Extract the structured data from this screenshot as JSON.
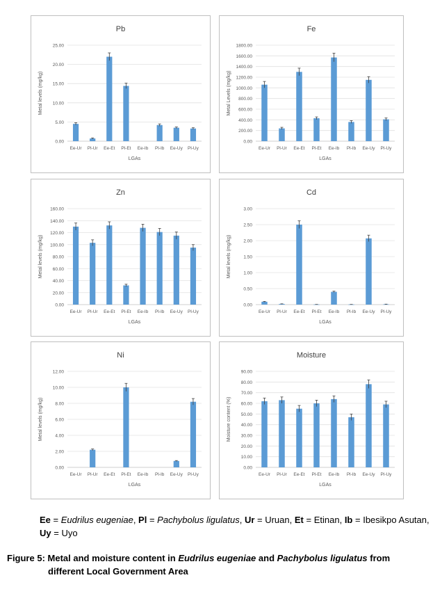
{
  "chart_data": [
    {
      "type": "bar",
      "title": "Pb",
      "xlabel": "LGAs",
      "ylabel": "Metal levels (mg/kg)",
      "categories": [
        "Ee-Ur",
        "Pl-Ur",
        "Ee-Et",
        "Pl-Et",
        "Ee-Ib",
        "Pl-Ib",
        "Ee-Uy",
        "Pl-Uy"
      ],
      "values": [
        4.5,
        0.7,
        22.0,
        14.4,
        0,
        4.2,
        3.5,
        3.3
      ],
      "errors": [
        0.3,
        0.15,
        1.0,
        0.7,
        0,
        0.3,
        0.2,
        0.2
      ],
      "ylim": [
        0,
        25
      ],
      "yticks": [
        "0.00",
        "5.00",
        "10.00",
        "15.00",
        "20.00",
        "25.00"
      ],
      "color": "#5b9bd5"
    },
    {
      "type": "bar",
      "title": "Fe",
      "xlabel": "LGAs",
      "ylabel": "Metal Levels (mg/kg)",
      "categories": [
        "Ee-Ur",
        "Pl-Ur",
        "Ee-Et",
        "Pl-Et",
        "Ee-Ib",
        "Pl-Ib",
        "Ee-Uy",
        "Pl-Uy"
      ],
      "values": [
        1060,
        240,
        1300,
        430,
        1570,
        360,
        1150,
        410
      ],
      "errors": [
        60,
        20,
        70,
        25,
        80,
        25,
        60,
        25
      ],
      "ylim": [
        0,
        1800
      ],
      "yticks": [
        "0.00",
        "200.00",
        "400.00",
        "600.00",
        "800.00",
        "1000.00",
        "1200.00",
        "1400.00",
        "1600.00",
        "1800.00"
      ],
      "color": "#5b9bd5"
    },
    {
      "type": "bar",
      "title": "Zn",
      "xlabel": "LGAs",
      "ylabel": "Metal levels (mg/kg)",
      "categories": [
        "Ee-Ur",
        "Pl-Ur",
        "Ee-Et",
        "Pl-Et",
        "Ee-Ib",
        "Pl-Ib",
        "Ee-Uy",
        "Pl-Uy"
      ],
      "values": [
        130,
        103,
        132,
        32,
        128,
        121,
        115,
        95
      ],
      "errors": [
        6,
        5,
        6,
        2,
        6,
        6,
        6,
        5
      ],
      "ylim": [
        0,
        160
      ],
      "yticks": [
        "0.00",
        "20.00",
        "40.00",
        "60.00",
        "80.00",
        "100.00",
        "120.00",
        "140.00",
        "160.00"
      ],
      "color": "#5b9bd5"
    },
    {
      "type": "bar",
      "title": "Cd",
      "xlabel": "LGAs",
      "ylabel": "Metal levels (mg/kg)",
      "categories": [
        "Ee-Ur",
        "Pl-Ur",
        "Ee-Et",
        "Pl-Et",
        "Ee-Ib",
        "Pl-Ib",
        "Ee-Uy",
        "Pl-Uy"
      ],
      "values": [
        0.09,
        0.02,
        2.5,
        0.005,
        0.4,
        0.005,
        2.07,
        0.01
      ],
      "errors": [
        0.01,
        0.005,
        0.12,
        0.002,
        0.02,
        0.002,
        0.1,
        0.005
      ],
      "ylim": [
        0,
        3
      ],
      "yticks": [
        "0.00",
        "0.50",
        "1.00",
        "1.50",
        "2.00",
        "2.50",
        "3.00"
      ],
      "color": "#5b9bd5"
    },
    {
      "type": "bar",
      "title": "Ni",
      "xlabel": "LGAs",
      "ylabel": "Metal levels (mg/kg)",
      "categories": [
        "Ee-Ur",
        "Pl-Ur",
        "Ee-Et",
        "Pl-Et",
        "Ee-Ib",
        "Pl-Ib",
        "Ee-Uy",
        "Pl-Uy"
      ],
      "values": [
        0,
        2.2,
        0,
        10.0,
        0,
        0,
        0.8,
        8.2
      ],
      "errors": [
        0,
        0.1,
        0,
        0.5,
        0,
        0,
        0.05,
        0.4
      ],
      "ylim": [
        0,
        12
      ],
      "yticks": [
        "0.00",
        "2.00",
        "4.00",
        "6.00",
        "8.00",
        "10.00",
        "12.00"
      ],
      "color": "#5b9bd5"
    },
    {
      "type": "bar",
      "title": "Moisture",
      "xlabel": "LGAs",
      "ylabel": "Moisture content (%)",
      "categories": [
        "Ee-Ur",
        "Pl-Ur",
        "Ee-Et",
        "Pl-Et",
        "Ee-Ib",
        "Pl-Ib",
        "Ee-Uy",
        "Pl-Uy"
      ],
      "values": [
        62,
        63,
        55,
        60,
        64,
        47,
        78,
        59
      ],
      "errors": [
        3,
        3,
        3,
        3,
        3,
        3,
        4,
        3
      ],
      "ylim": [
        0,
        90
      ],
      "yticks": [
        "0.00",
        "10.00",
        "20.00",
        "30.00",
        "40.00",
        "50.00",
        "60.00",
        "70.00",
        "80.00",
        "90.00"
      ],
      "color": "#5b9bd5"
    }
  ],
  "legend_text": {
    "ee_abbr": "Ee",
    "ee_name": "Eudrilus eugeniae",
    "pl_abbr": "Pl",
    "pl_name": "Pachybolus ligulatus",
    "ur_abbr": "Ur",
    "ur_name": "Uruan",
    "et_abbr": "Et",
    "et_name": "Etinan",
    "ib_abbr": "Ib",
    "ib_name": "Ibesikpo Asutan",
    "uy_abbr": "Uy",
    "uy_name": "Uyo"
  },
  "caption": {
    "prefix": "Figure 5: Metal and moisture content in ",
    "species1": "Eudrilus eugeniae",
    "middle": " and ",
    "species2": "Pachybolus ligulatus",
    "suffix": " from",
    "line2": "different Local Government Area"
  }
}
